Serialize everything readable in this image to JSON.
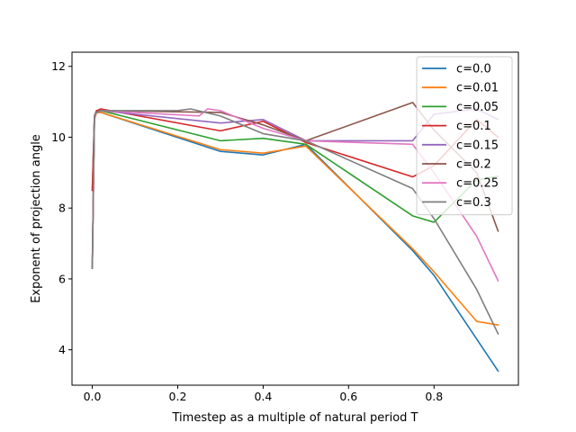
{
  "chart_data": {
    "type": "line",
    "title": "",
    "xlabel": "Timestep as a multiple of natural period T",
    "ylabel": "Exponent of projection angle",
    "xlim": [
      -0.0475,
      0.9975
    ],
    "ylim": [
      3.0,
      12.4
    ],
    "xticks": [
      0.0,
      0.2,
      0.4,
      0.6,
      0.8
    ],
    "xtick_labels": [
      "0.0",
      "0.2",
      "0.4",
      "0.6",
      "0.8"
    ],
    "yticks": [
      4,
      6,
      8,
      10,
      12
    ],
    "ytick_labels": [
      "4",
      "6",
      "8",
      "10",
      "12"
    ],
    "grid": false,
    "legend_position": "top-right",
    "series": [
      {
        "name": "c=0.0",
        "color": "#1f77b4",
        "x": [
          0.0,
          0.005,
          0.01,
          0.02,
          0.3,
          0.4,
          0.5,
          0.75,
          0.8,
          0.9,
          0.95
        ],
        "y": [
          6.3,
          10.6,
          10.7,
          10.7,
          9.6,
          9.5,
          9.8,
          6.8,
          6.1,
          4.3,
          3.4
        ]
      },
      {
        "name": "c=0.01",
        "color": "#ff7f0e",
        "x": [
          0.0,
          0.005,
          0.01,
          0.02,
          0.3,
          0.4,
          0.5,
          0.75,
          0.8,
          0.9,
          0.95
        ],
        "y": [
          6.3,
          10.5,
          10.7,
          10.7,
          9.65,
          9.55,
          9.75,
          6.85,
          6.2,
          4.8,
          4.7
        ]
      },
      {
        "name": "c=0.05",
        "color": "#2ca02c",
        "x": [
          0.0,
          0.005,
          0.01,
          0.02,
          0.3,
          0.4,
          0.5,
          0.75,
          0.8,
          0.9,
          0.95
        ],
        "y": [
          8.5,
          10.6,
          10.75,
          10.75,
          9.9,
          9.97,
          9.8,
          7.78,
          7.6,
          8.8,
          8.9
        ]
      },
      {
        "name": "c=0.1",
        "color": "#d62728",
        "x": [
          0.0,
          0.005,
          0.01,
          0.02,
          0.3,
          0.4,
          0.5,
          0.75,
          0.8,
          0.9,
          0.95
        ],
        "y": [
          8.5,
          10.6,
          10.75,
          10.8,
          10.18,
          10.45,
          9.85,
          8.88,
          9.2,
          10.5,
          10.0
        ]
      },
      {
        "name": "c=0.15",
        "color": "#9467bd",
        "x": [
          0.0,
          0.005,
          0.01,
          0.02,
          0.3,
          0.4,
          0.5,
          0.75,
          0.8,
          0.9,
          0.95
        ],
        "y": [
          6.3,
          10.6,
          10.7,
          10.75,
          10.4,
          10.5,
          9.9,
          9.9,
          10.65,
          10.8,
          10.5
        ]
      },
      {
        "name": "c=0.2",
        "color": "#8c564b",
        "x": [
          0.0,
          0.005,
          0.01,
          0.02,
          0.3,
          0.4,
          0.5,
          0.75,
          0.8,
          0.9,
          0.95
        ],
        "y": [
          6.3,
          10.6,
          10.7,
          10.75,
          10.7,
          10.35,
          9.9,
          10.98,
          10.2,
          9.0,
          7.35
        ]
      },
      {
        "name": "c=0.25",
        "color": "#e377c2",
        "x": [
          0.0,
          0.005,
          0.01,
          0.02,
          0.25,
          0.27,
          0.3,
          0.4,
          0.5,
          0.75,
          0.8,
          0.9,
          0.95
        ],
        "y": [
          6.3,
          10.6,
          10.7,
          10.75,
          10.6,
          10.8,
          10.75,
          10.25,
          9.9,
          9.8,
          9.0,
          7.2,
          5.95
        ]
      },
      {
        "name": "c=0.3",
        "color": "#7f7f7f",
        "x": [
          0.0,
          0.005,
          0.01,
          0.02,
          0.2,
          0.23,
          0.3,
          0.4,
          0.5,
          0.75,
          0.8,
          0.9,
          0.95
        ],
        "y": [
          6.3,
          10.6,
          10.7,
          10.75,
          10.75,
          10.8,
          10.6,
          10.1,
          9.9,
          8.55,
          7.7,
          5.7,
          4.45
        ]
      }
    ]
  }
}
